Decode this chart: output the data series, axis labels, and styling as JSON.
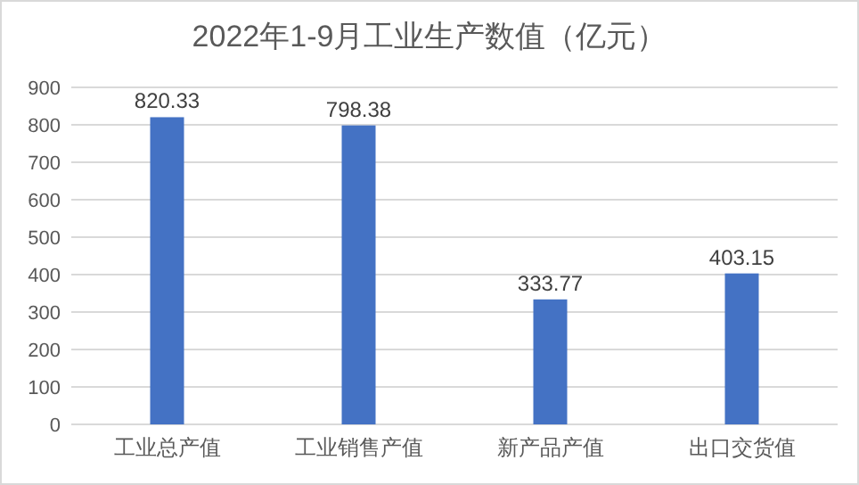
{
  "chart_data": {
    "type": "bar",
    "title": "2022年1-9月工业生产数值（亿元）",
    "categories": [
      "工业总产值",
      "工业销售产值",
      "新产品产值",
      "出口交货值"
    ],
    "values": [
      820.33,
      798.38,
      333.77,
      403.15
    ],
    "color": "#4472c4",
    "ylim": [
      0,
      900
    ],
    "yticks": [
      0,
      100,
      200,
      300,
      400,
      500,
      600,
      700,
      800,
      900
    ],
    "grid": "y",
    "data_labels": true
  }
}
